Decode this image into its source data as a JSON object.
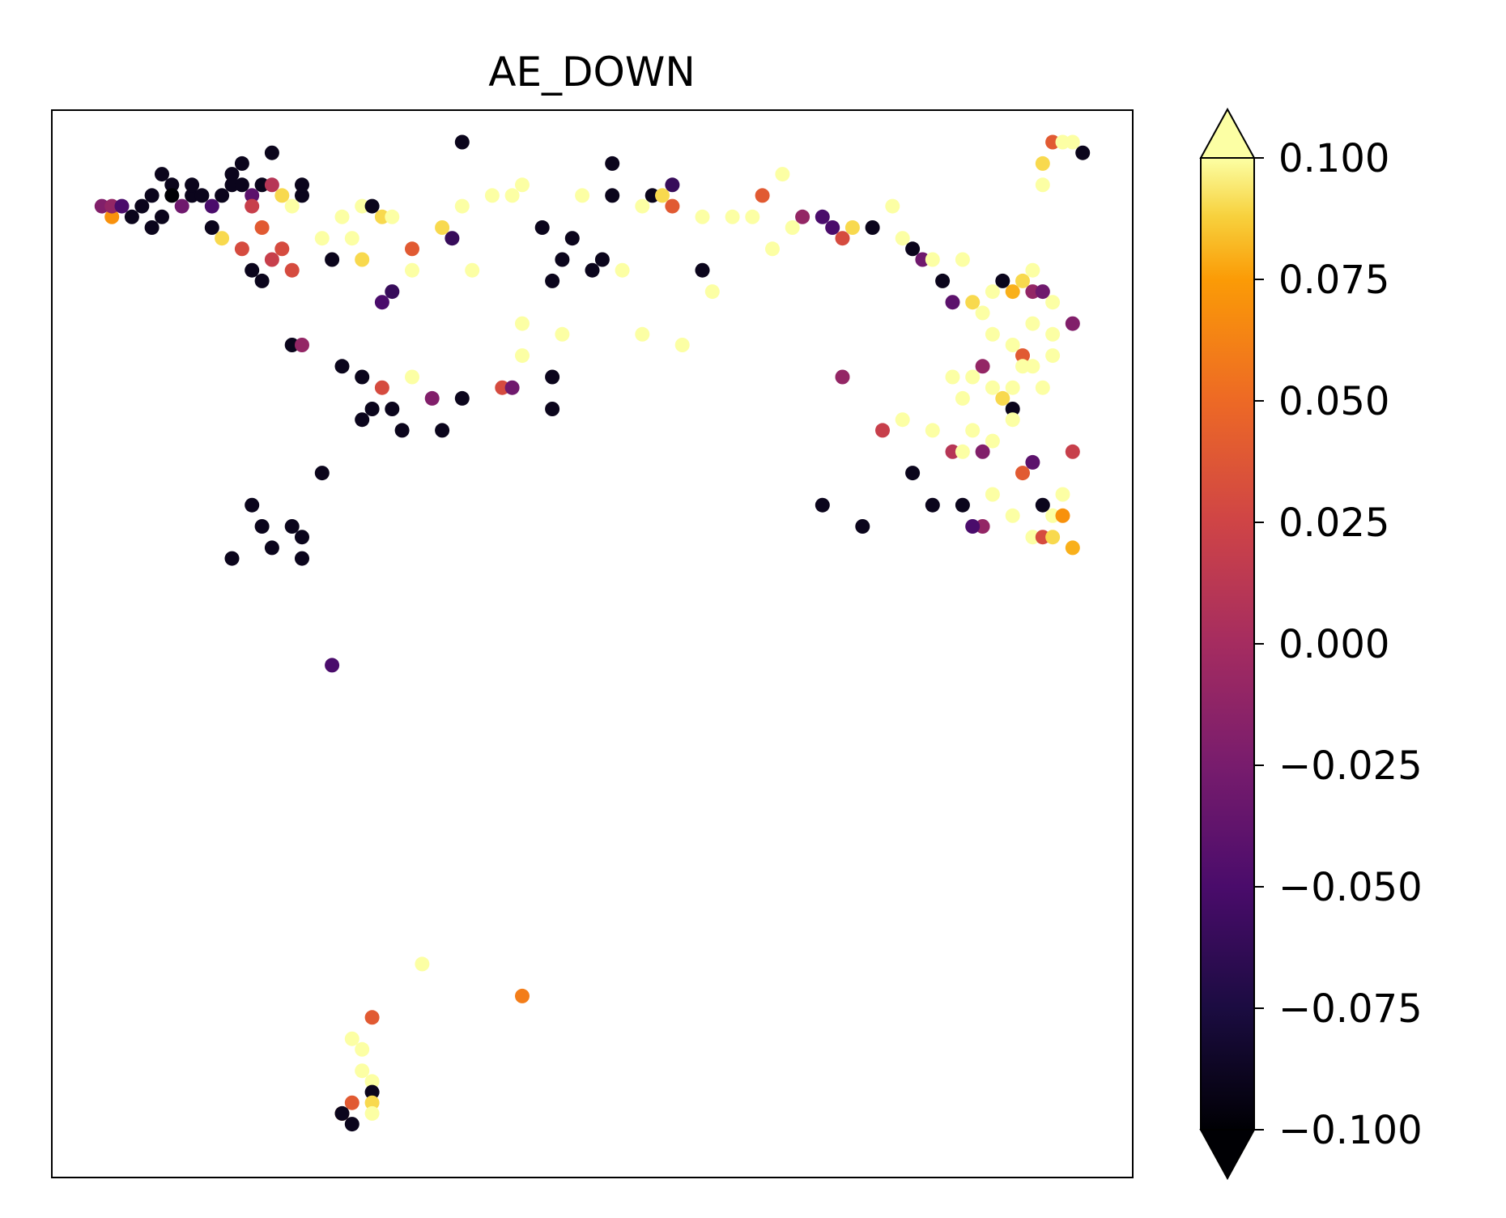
{
  "chart_data": {
    "type": "scatter",
    "title": "AE_DOWN",
    "xlabel": "",
    "ylabel": "",
    "x_ticks_visible": false,
    "y_ticks_visible": false,
    "grid": false,
    "colorbar": {
      "colormap": "inferno",
      "extend": "both",
      "range": [
        -0.1,
        0.1
      ],
      "ticks": [
        -0.1,
        -0.075,
        -0.05,
        -0.025,
        0.0,
        0.025,
        0.05,
        0.075,
        0.1
      ],
      "tick_labels": [
        "−0.100",
        "−0.075",
        "−0.050",
        "−0.025",
        "0.000",
        "0.025",
        "0.050",
        "0.075",
        "0.100"
      ]
    },
    "points": [
      [
        0.05,
        0.91,
        -0.02
      ],
      [
        0.06,
        0.9,
        0.07
      ],
      [
        0.06,
        0.91,
        -0.01
      ],
      [
        0.07,
        0.91,
        -0.05
      ],
      [
        0.08,
        0.9,
        -0.09
      ],
      [
        0.09,
        0.91,
        -0.09
      ],
      [
        0.1,
        0.92,
        -0.09
      ],
      [
        0.1,
        0.89,
        -0.09
      ],
      [
        0.11,
        0.9,
        -0.09
      ],
      [
        0.11,
        0.94,
        -0.09
      ],
      [
        0.12,
        0.93,
        -0.09
      ],
      [
        0.12,
        0.92,
        -0.1
      ],
      [
        0.13,
        0.91,
        -0.03
      ],
      [
        0.14,
        0.92,
        -0.09
      ],
      [
        0.14,
        0.93,
        -0.09
      ],
      [
        0.15,
        0.92,
        -0.09
      ],
      [
        0.16,
        0.91,
        -0.05
      ],
      [
        0.17,
        0.92,
        -0.09
      ],
      [
        0.18,
        0.93,
        -0.09
      ],
      [
        0.18,
        0.94,
        -0.09
      ],
      [
        0.19,
        0.93,
        -0.09
      ],
      [
        0.19,
        0.95,
        -0.09
      ],
      [
        0.2,
        0.92,
        -0.04
      ],
      [
        0.2,
        0.91,
        0.02
      ],
      [
        0.21,
        0.93,
        -0.09
      ],
      [
        0.21,
        0.89,
        0.04
      ],
      [
        0.22,
        0.96,
        -0.09
      ],
      [
        0.22,
        0.93,
        0.01
      ],
      [
        0.23,
        0.87,
        0.03
      ],
      [
        0.23,
        0.92,
        0.09
      ],
      [
        0.24,
        0.91,
        0.1
      ],
      [
        0.25,
        0.92,
        -0.09
      ],
      [
        0.25,
        0.93,
        -0.09
      ],
      [
        0.16,
        0.89,
        -0.09
      ],
      [
        0.17,
        0.88,
        0.09
      ],
      [
        0.19,
        0.87,
        0.03
      ],
      [
        0.2,
        0.85,
        -0.09
      ],
      [
        0.21,
        0.84,
        -0.09
      ],
      [
        0.22,
        0.86,
        0.02
      ],
      [
        0.24,
        0.85,
        0.03
      ],
      [
        0.27,
        0.88,
        0.1
      ],
      [
        0.28,
        0.86,
        -0.09
      ],
      [
        0.29,
        0.9,
        0.1
      ],
      [
        0.3,
        0.88,
        0.1
      ],
      [
        0.31,
        0.91,
        0.1
      ],
      [
        0.32,
        0.91,
        -0.09
      ],
      [
        0.31,
        0.86,
        0.09
      ],
      [
        0.33,
        0.9,
        0.09
      ],
      [
        0.34,
        0.9,
        0.1
      ],
      [
        0.33,
        0.82,
        -0.05
      ],
      [
        0.34,
        0.83,
        -0.06
      ],
      [
        0.36,
        0.87,
        0.04
      ],
      [
        0.36,
        0.85,
        0.1
      ],
      [
        0.39,
        0.89,
        0.09
      ],
      [
        0.4,
        0.88,
        -0.06
      ],
      [
        0.41,
        0.91,
        0.1
      ],
      [
        0.41,
        0.97,
        -0.09
      ],
      [
        0.42,
        0.85,
        0.1
      ],
      [
        0.44,
        0.92,
        0.1
      ],
      [
        0.47,
        0.93,
        0.1
      ],
      [
        0.46,
        0.92,
        0.1
      ],
      [
        0.47,
        0.8,
        0.1
      ],
      [
        0.49,
        0.89,
        -0.09
      ],
      [
        0.5,
        0.84,
        -0.09
      ],
      [
        0.51,
        0.86,
        -0.09
      ],
      [
        0.52,
        0.88,
        -0.09
      ],
      [
        0.53,
        0.92,
        0.1
      ],
      [
        0.54,
        0.85,
        -0.09
      ],
      [
        0.55,
        0.86,
        -0.09
      ],
      [
        0.56,
        0.92,
        -0.09
      ],
      [
        0.56,
        0.95,
        -0.09
      ],
      [
        0.57,
        0.85,
        0.1
      ],
      [
        0.59,
        0.91,
        0.1
      ],
      [
        0.6,
        0.92,
        -0.09
      ],
      [
        0.61,
        0.92,
        0.09
      ],
      [
        0.62,
        0.91,
        0.04
      ],
      [
        0.62,
        0.93,
        -0.06
      ],
      [
        0.65,
        0.9,
        0.1
      ],
      [
        0.65,
        0.85,
        -0.09
      ],
      [
        0.66,
        0.83,
        0.1
      ],
      [
        0.68,
        0.9,
        0.1
      ],
      [
        0.7,
        0.9,
        0.1
      ],
      [
        0.71,
        0.92,
        0.04
      ],
      [
        0.72,
        0.87,
        0.1
      ],
      [
        0.73,
        0.94,
        0.1
      ],
      [
        0.74,
        0.89,
        0.1
      ],
      [
        0.75,
        0.9,
        -0.01
      ],
      [
        0.77,
        0.9,
        -0.05
      ],
      [
        0.78,
        0.89,
        -0.05
      ],
      [
        0.79,
        0.88,
        0.03
      ],
      [
        0.8,
        0.89,
        0.09
      ],
      [
        0.82,
        0.89,
        -0.09
      ],
      [
        0.84,
        0.91,
        0.1
      ],
      [
        0.85,
        0.88,
        0.1
      ],
      [
        0.86,
        0.87,
        -0.09
      ],
      [
        0.87,
        0.86,
        -0.03
      ],
      [
        0.88,
        0.86,
        0.1
      ],
      [
        0.89,
        0.84,
        -0.09
      ],
      [
        0.9,
        0.82,
        -0.04
      ],
      [
        0.91,
        0.86,
        0.1
      ],
      [
        0.92,
        0.82,
        0.09
      ],
      [
        0.93,
        0.81,
        0.1
      ],
      [
        0.94,
        0.83,
        0.1
      ],
      [
        0.95,
        0.84,
        -0.09
      ],
      [
        0.96,
        0.83,
        0.08
      ],
      [
        0.97,
        0.84,
        0.09
      ],
      [
        0.98,
        0.83,
        -0.01
      ],
      [
        0.99,
        0.83,
        -0.03
      ],
      [
        1.0,
        0.82,
        0.1
      ],
      [
        0.99,
        0.95,
        0.09
      ],
      [
        1.0,
        0.97,
        0.04
      ],
      [
        1.01,
        0.97,
        0.1
      ],
      [
        1.02,
        0.97,
        0.1
      ],
      [
        1.03,
        0.96,
        -0.09
      ],
      [
        0.99,
        0.93,
        0.1
      ],
      [
        0.98,
        0.85,
        0.1
      ],
      [
        0.94,
        0.79,
        0.1
      ],
      [
        0.96,
        0.78,
        0.1
      ],
      [
        0.97,
        0.77,
        0.04
      ],
      [
        0.98,
        0.8,
        0.1
      ],
      [
        1.0,
        0.79,
        0.1
      ],
      [
        1.02,
        0.8,
        -0.02
      ],
      [
        0.9,
        0.75,
        0.1
      ],
      [
        0.91,
        0.73,
        0.1
      ],
      [
        0.92,
        0.75,
        0.1
      ],
      [
        0.93,
        0.76,
        -0.01
      ],
      [
        0.94,
        0.74,
        0.1
      ],
      [
        0.95,
        0.73,
        0.09
      ],
      [
        0.96,
        0.72,
        -0.09
      ],
      [
        0.96,
        0.74,
        0.1
      ],
      [
        0.97,
        0.76,
        0.1
      ],
      [
        0.98,
        0.76,
        0.1
      ],
      [
        0.99,
        0.74,
        0.1
      ],
      [
        1.0,
        0.77,
        0.1
      ],
      [
        0.79,
        0.75,
        -0.01
      ],
      [
        0.83,
        0.7,
        0.02
      ],
      [
        0.85,
        0.71,
        0.1
      ],
      [
        0.86,
        0.66,
        -0.09
      ],
      [
        0.88,
        0.7,
        0.1
      ],
      [
        0.9,
        0.68,
        0.01
      ],
      [
        0.91,
        0.68,
        0.1
      ],
      [
        0.92,
        0.7,
        0.1
      ],
      [
        0.93,
        0.68,
        -0.02
      ],
      [
        0.94,
        0.69,
        0.1
      ],
      [
        0.96,
        0.71,
        0.1
      ],
      [
        0.97,
        0.66,
        0.04
      ],
      [
        0.98,
        0.67,
        -0.04
      ],
      [
        0.99,
        0.63,
        -0.09
      ],
      [
        1.0,
        0.62,
        0.1
      ],
      [
        1.01,
        0.64,
        0.1
      ],
      [
        1.02,
        0.68,
        0.02
      ],
      [
        0.93,
        0.61,
        -0.01
      ],
      [
        0.94,
        0.64,
        0.1
      ],
      [
        0.96,
        0.62,
        0.1
      ],
      [
        0.98,
        0.6,
        0.1
      ],
      [
        0.99,
        0.6,
        0.03
      ],
      [
        1.0,
        0.6,
        0.09
      ],
      [
        1.01,
        0.62,
        0.07
      ],
      [
        1.02,
        0.59,
        0.08
      ],
      [
        0.88,
        0.63,
        -0.09
      ],
      [
        0.91,
        0.63,
        -0.09
      ],
      [
        0.92,
        0.61,
        -0.05
      ],
      [
        0.77,
        0.63,
        -0.09
      ],
      [
        0.81,
        0.61,
        -0.09
      ],
      [
        0.2,
        0.63,
        -0.09
      ],
      [
        0.21,
        0.61,
        -0.09
      ],
      [
        0.22,
        0.59,
        -0.09
      ],
      [
        0.24,
        0.61,
        -0.09
      ],
      [
        0.25,
        0.6,
        -0.09
      ],
      [
        0.25,
        0.58,
        -0.09
      ],
      [
        0.18,
        0.58,
        -0.09
      ],
      [
        0.28,
        0.48,
        -0.05
      ],
      [
        0.31,
        0.71,
        -0.09
      ],
      [
        0.32,
        0.72,
        -0.09
      ],
      [
        0.34,
        0.72,
        -0.09
      ],
      [
        0.35,
        0.7,
        -0.09
      ],
      [
        0.33,
        0.74,
        0.03
      ],
      [
        0.36,
        0.75,
        0.1
      ],
      [
        0.38,
        0.73,
        -0.02
      ],
      [
        0.39,
        0.7,
        -0.09
      ],
      [
        0.41,
        0.73,
        -0.09
      ],
      [
        0.45,
        0.74,
        0.03
      ],
      [
        0.46,
        0.74,
        -0.03
      ],
      [
        0.5,
        0.75,
        -0.09
      ],
      [
        0.5,
        0.72,
        -0.09
      ],
      [
        0.47,
        0.77,
        0.1
      ],
      [
        0.51,
        0.79,
        0.1
      ],
      [
        0.59,
        0.79,
        0.1
      ],
      [
        0.63,
        0.78,
        0.1
      ],
      [
        0.27,
        0.66,
        -0.09
      ],
      [
        0.24,
        0.78,
        -0.09
      ],
      [
        0.25,
        0.78,
        -0.01
      ],
      [
        0.29,
        0.76,
        -0.09
      ],
      [
        0.31,
        0.75,
        -0.09
      ],
      [
        0.37,
        0.2,
        0.1
      ],
      [
        0.47,
        0.17,
        0.06
      ],
      [
        0.32,
        0.15,
        0.04
      ],
      [
        0.3,
        0.13,
        0.1
      ],
      [
        0.31,
        0.12,
        0.1
      ],
      [
        0.31,
        0.1,
        0.1
      ],
      [
        0.32,
        0.09,
        0.1
      ],
      [
        0.32,
        0.08,
        -0.09
      ],
      [
        0.32,
        0.07,
        0.09
      ],
      [
        0.32,
        0.06,
        0.1
      ],
      [
        0.29,
        0.06,
        0.06
      ],
      [
        0.3,
        0.07,
        0.04
      ],
      [
        0.3,
        0.05,
        -0.09
      ],
      [
        0.29,
        0.06,
        -0.09
      ]
    ]
  }
}
